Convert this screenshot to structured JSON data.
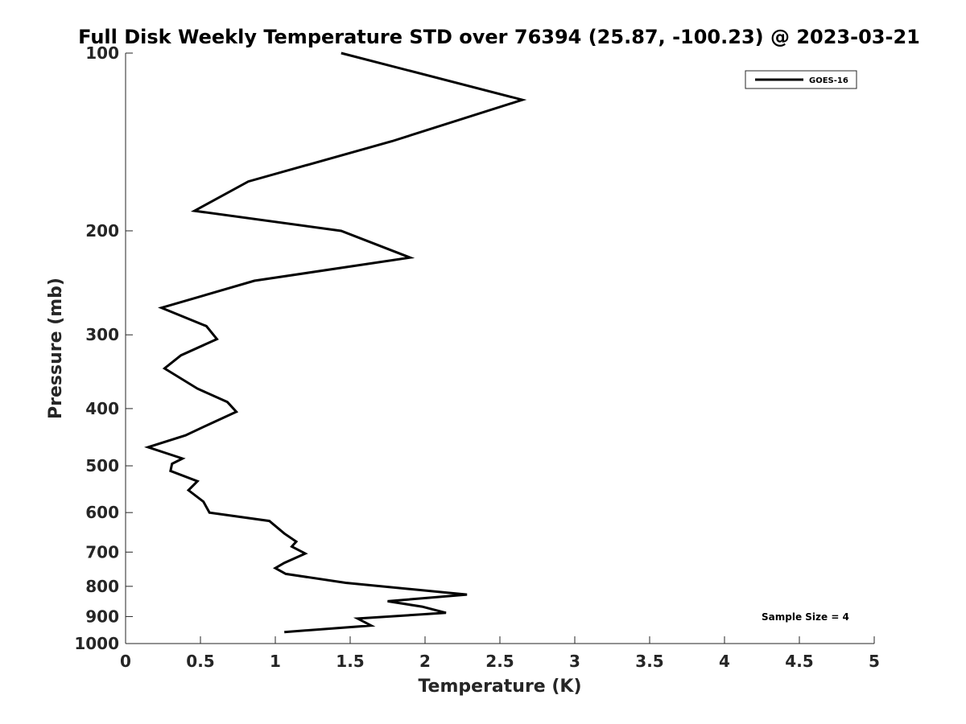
{
  "chart_data": {
    "type": "line",
    "title": "Full Disk Weekly Temperature STD over 76394 (25.87, -100.23) @ 2023-03-21",
    "xlabel": "Temperature (K)",
    "ylabel": "Pressure (mb)",
    "xlim": [
      0,
      5
    ],
    "ylim": [
      100,
      1000
    ],
    "y_scale": "log",
    "y_reversed": true,
    "xticks": [
      0,
      0.5,
      1,
      1.5,
      2,
      2.5,
      3,
      3.5,
      4,
      4.5,
      5
    ],
    "xtick_labels": [
      "0",
      "0.5",
      "1",
      "1.5",
      "2",
      "2.5",
      "3",
      "3.5",
      "4",
      "4.5",
      "5"
    ],
    "yticks": [
      100,
      200,
      300,
      400,
      500,
      600,
      700,
      800,
      900,
      1000
    ],
    "ytick_labels": [
      "100",
      "200",
      "300",
      "400",
      "500",
      "600",
      "700",
      "800",
      "900",
      "1000"
    ],
    "grid": false,
    "legend_position": "top-right",
    "series": [
      {
        "name": "GOES-16",
        "color": "#000000",
        "points": [
          [
            1.44,
            100
          ],
          [
            2.65,
            120
          ],
          [
            1.78,
            141
          ],
          [
            0.82,
            165
          ],
          [
            0.46,
            185
          ],
          [
            1.44,
            200
          ],
          [
            1.9,
            222
          ],
          [
            0.86,
            243
          ],
          [
            0.24,
            270
          ],
          [
            0.54,
            290
          ],
          [
            0.61,
            305
          ],
          [
            0.37,
            325
          ],
          [
            0.26,
            342
          ],
          [
            0.48,
            370
          ],
          [
            0.68,
            390
          ],
          [
            0.74,
            405
          ],
          [
            0.56,
            425
          ],
          [
            0.4,
            444
          ],
          [
            0.15,
            465
          ],
          [
            0.38,
            486
          ],
          [
            0.31,
            496
          ],
          [
            0.3,
            510
          ],
          [
            0.48,
            531
          ],
          [
            0.42,
            550
          ],
          [
            0.52,
            575
          ],
          [
            0.56,
            600
          ],
          [
            0.96,
            620
          ],
          [
            1.06,
            651
          ],
          [
            1.14,
            672
          ],
          [
            1.11,
            685
          ],
          [
            1.2,
            704
          ],
          [
            1.06,
            730
          ],
          [
            1.0,
            745
          ],
          [
            1.07,
            762
          ],
          [
            1.47,
            789
          ],
          [
            2.28,
            826
          ],
          [
            1.75,
            848
          ],
          [
            1.98,
            866
          ],
          [
            2.14,
            887
          ],
          [
            1.55,
            907
          ],
          [
            1.64,
            932
          ],
          [
            1.06,
            956
          ]
        ]
      }
    ],
    "annotation": "Sample Size = 4"
  }
}
